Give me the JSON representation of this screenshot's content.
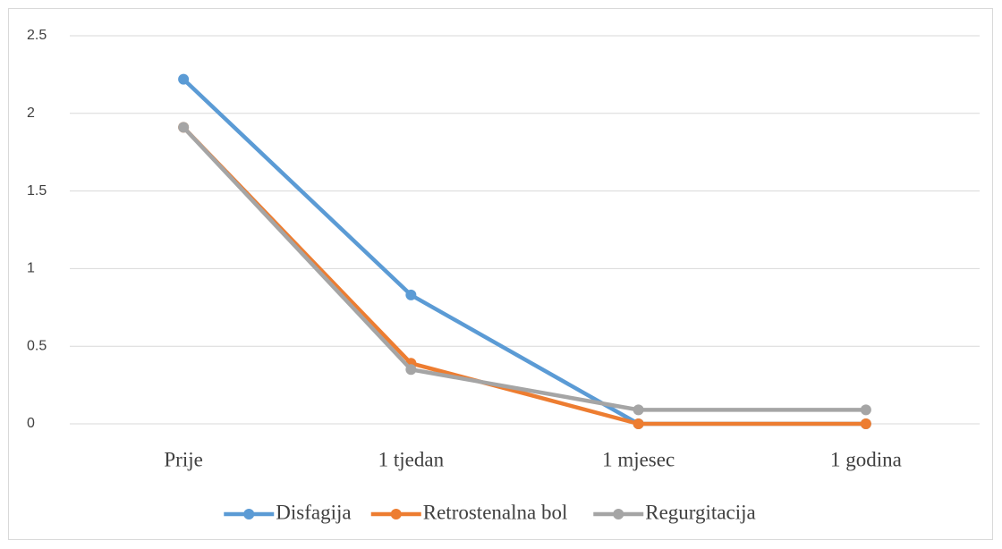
{
  "chart_data": {
    "type": "line",
    "categories": [
      "Prije",
      "1 tjedan",
      "1 mjesec",
      "1 godina"
    ],
    "series": [
      {
        "name": "Disfagija",
        "color": "#5b9bd5",
        "values": [
          2.22,
          0.83,
          0,
          0
        ]
      },
      {
        "name": "Retrostenalna bol",
        "color": "#ed7d31",
        "values": [
          1.91,
          0.39,
          0,
          0
        ]
      },
      {
        "name": "Regurgitacija",
        "color": "#a5a5a5",
        "values": [
          1.91,
          0.35,
          0.09,
          0.09
        ]
      }
    ],
    "ylim": [
      0,
      2.5
    ],
    "yticks": [
      0,
      0.5,
      1,
      1.5,
      2,
      2.5
    ],
    "grid": true,
    "legend": "bottom"
  }
}
